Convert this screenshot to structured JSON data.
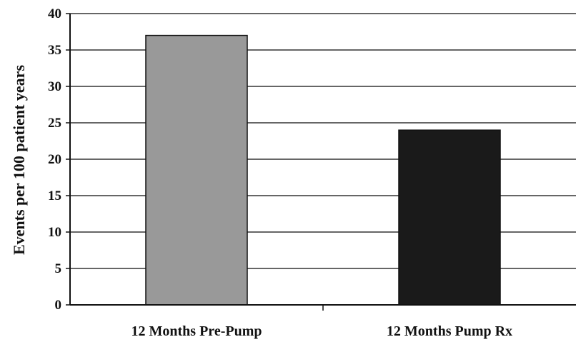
{
  "chart_data": {
    "type": "bar",
    "categories": [
      "12 Months Pre-Pump",
      "12 Months Pump Rx"
    ],
    "values": [
      37,
      24
    ],
    "bar_colors": [
      "#999999",
      "#1a1a1a"
    ],
    "title": "",
    "xlabel": "",
    "ylabel": "Events per 100 patient years",
    "ylim": [
      0,
      40
    ],
    "yticks": [
      0,
      5,
      10,
      15,
      20,
      25,
      30,
      35,
      40
    ],
    "grid": true
  }
}
